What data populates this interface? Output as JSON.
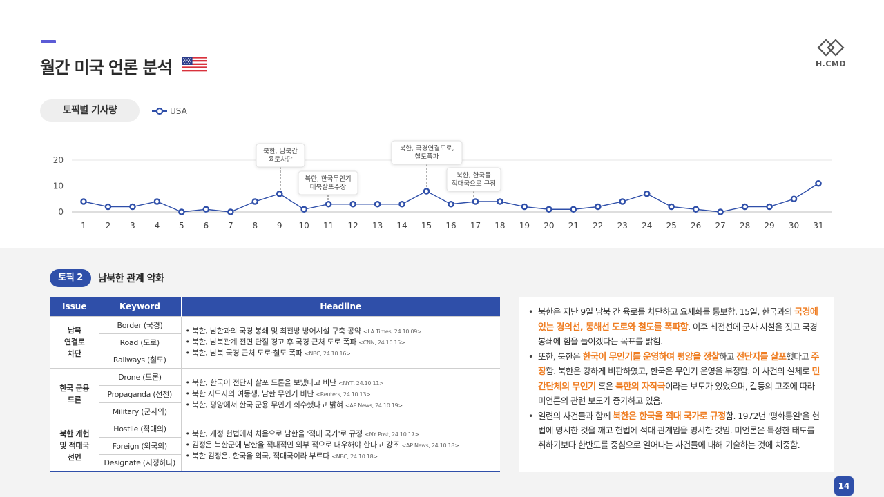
{
  "header": {
    "title": "월간 미국 언론 분석",
    "logo_text": "H.CMD",
    "flag_icon": "us-flag-icon"
  },
  "chart_section": {
    "pill_label": "토픽별 기사량",
    "legend_label": "USA"
  },
  "chart_data": {
    "type": "line",
    "x": [
      1,
      2,
      3,
      4,
      5,
      6,
      7,
      8,
      9,
      10,
      11,
      12,
      13,
      14,
      15,
      16,
      17,
      18,
      19,
      20,
      21,
      22,
      23,
      24,
      25,
      26,
      27,
      28,
      29,
      30,
      31
    ],
    "series": [
      {
        "name": "USA",
        "values": [
          4,
          2,
          2,
          4,
          0,
          1,
          0,
          4,
          7,
          1,
          3,
          3,
          3,
          3,
          8,
          3,
          4,
          4,
          2,
          1,
          1,
          2,
          4,
          7,
          2,
          1,
          0,
          2,
          2,
          5,
          11
        ]
      }
    ],
    "yticks": [
      0,
      10,
      20
    ],
    "ylim": [
      0,
      20
    ],
    "grid": true,
    "legend": "top-left",
    "line_color": "#2f4fa9",
    "annotations": [
      {
        "x": 9,
        "lines": [
          "북한, 남북간",
          "육로차단"
        ]
      },
      {
        "x": 11,
        "lines": [
          "북한, 한국무인기",
          "대북살포주장"
        ]
      },
      {
        "x": 15,
        "lines": [
          "북한, 국경연결도로,",
          "철도폭파"
        ]
      },
      {
        "x": 17.5,
        "lines": [
          "북한, 한국을",
          "적대국으로 규정"
        ]
      }
    ]
  },
  "topic": {
    "badge": "토픽 2",
    "title": "남북한 관계 악화"
  },
  "table": {
    "headers": {
      "issue": "Issue",
      "keyword": "Keyword",
      "headline": "Headline"
    },
    "rows": [
      {
        "issue": [
          "남북",
          "연결로",
          "차단"
        ],
        "keywords": [
          "Border (국경)",
          "Road (도로)",
          "Railways (철도)"
        ],
        "headlines": [
          {
            "text": "북한, 남한과의 국경 봉쇄 및 최전방 방어시설 구축 공약",
            "source": "<LA Times, 24.10.09>"
          },
          {
            "text": "북한, 남북관계 전면 단절 경고 후 국경 근처 도로 폭파",
            "source": "<CNN, 24.10.15>"
          },
          {
            "text": "북한, 남북 국경 근처 도로·철도 폭파",
            "source": "<NBC, 24.10.16>"
          }
        ]
      },
      {
        "issue": [
          "한국 군용",
          "드론"
        ],
        "keywords": [
          "Drone (드론)",
          "Propaganda (선전)",
          "Military (군사의)"
        ],
        "headlines": [
          {
            "text": "북한, 한국이 전단지 살포 드론을 보냈다고 비난",
            "source": "<NYT, 24.10.11>"
          },
          {
            "text": "북한 지도자의 여동생, 남한 무인기 비난",
            "source": "<Reuters, 24.10.13>"
          },
          {
            "text": "북한, 평양에서 한국 군용 무인기 회수했다고 밝혀",
            "source": "<AP News, 24.10.19>"
          }
        ]
      },
      {
        "issue": [
          "북한 개헌",
          "및 적대국",
          "선언"
        ],
        "keywords": [
          "Hostile (적대의)",
          "Foreign (외국의)",
          "Designate (지정하다)"
        ],
        "headlines": [
          {
            "text": "북한, 개정 헌법에서 처음으로 남한을 '적대 국가'로 규정",
            "source": "<NY Post, 24.10.17>"
          },
          {
            "text": "김정은 북한군에 남한을 적대적인 외부 적으로 대우해야 한다고 강조",
            "source": "<AP News, 24.10.18>"
          },
          {
            "text": "북한 김정은, 한국을 외국, 적대국이라 부르다",
            "source": "<NBC, 24.10.18>"
          }
        ]
      }
    ]
  },
  "summary": {
    "p1": {
      "a": "북한은 지난 9일 남북 간 육로를 차단하고 요새화를 통보함. 15일, 한국과의 ",
      "b": "국경에 있는 경의선, 동해선 도로와 철도를 폭파함",
      "c": ". 이후 최전선에 군사 시설을 짓고 국경 봉쇄에 힘을 들이겠다는 목표를 밝힘."
    },
    "p2": {
      "a": "또한, 북한은 ",
      "b": "한국이 무인기를 운영하여 평양을 정찰",
      "c": "하고 ",
      "d": "전단지를 살포",
      "e": "했다고 ",
      "f": "주장",
      "g": "함. 북한은 강하게 비판하였고, 한국은 무인기 운영을 부정함. 이 사건의 실체로 ",
      "h": "민간단체의 무인기",
      "i": " 혹은 ",
      "j": "북한의 자작극",
      "k": "이라는 보도가 있었으며, 갈등의 고조에 따라 미언론의 관련 보도가 증가하고 있음."
    },
    "p3": {
      "a": "일련의 사건들과 함께 ",
      "b": "북한은 한국을 적대 국가로 규정",
      "c": "함. 1972년 '평화통일'을 헌법에 명시한 것을 깨고 헌법에 적대 관계임을 명시한 것임. 미언론은 특정한 태도를 취하기보다 한반도를 중심으로 일어나는 사건들에 대해 기술하는 것에 치중함."
    }
  },
  "page_number": "14"
}
